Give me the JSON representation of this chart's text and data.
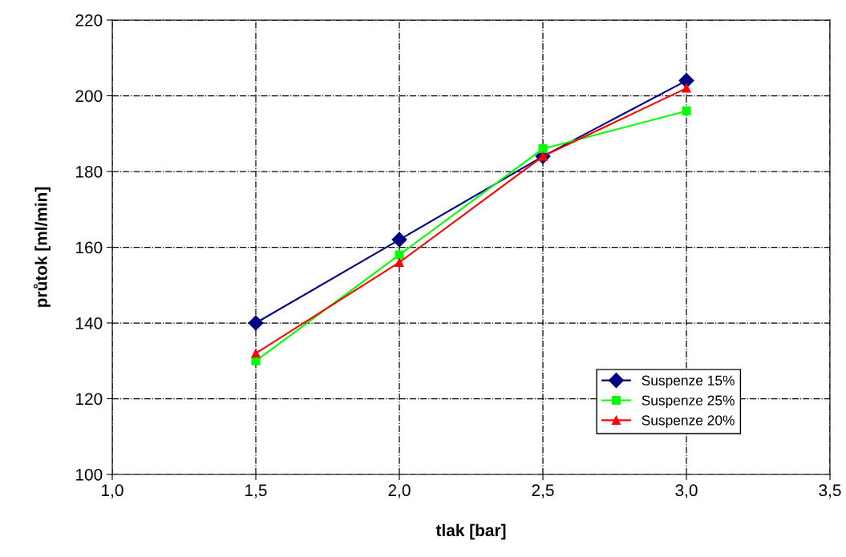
{
  "chart_data": {
    "type": "line",
    "xlabel": "tlak [bar]",
    "ylabel": "průtok [ml/min]",
    "x": [
      1.5,
      2.0,
      2.5,
      3.0
    ],
    "series": [
      {
        "name": "Suspenze 15%",
        "color": "#000080",
        "marker": "diamond",
        "values": [
          140,
          162,
          184,
          204
        ]
      },
      {
        "name": "Suspenze 25%",
        "color": "#00ff00",
        "marker": "square",
        "values": [
          130,
          158,
          186,
          196
        ]
      },
      {
        "name": "Suspenze 20%",
        "color": "#ff0000",
        "marker": "triangle",
        "values": [
          132,
          156,
          184,
          202
        ]
      }
    ],
    "xlim": [
      1.0,
      3.5
    ],
    "xticks": [
      {
        "value": 1.0,
        "label": "1,0"
      },
      {
        "value": 1.5,
        "label": "1,5"
      },
      {
        "value": 2.0,
        "label": "2,0"
      },
      {
        "value": 2.5,
        "label": "2,5"
      },
      {
        "value": 3.0,
        "label": "3,0"
      },
      {
        "value": 3.5,
        "label": "3,5"
      }
    ],
    "ylim": [
      100,
      220
    ],
    "yticks": [
      100,
      120,
      140,
      160,
      180,
      200,
      220
    ],
    "grid": true,
    "legend": "bottom right",
    "line_style": "solid"
  }
}
